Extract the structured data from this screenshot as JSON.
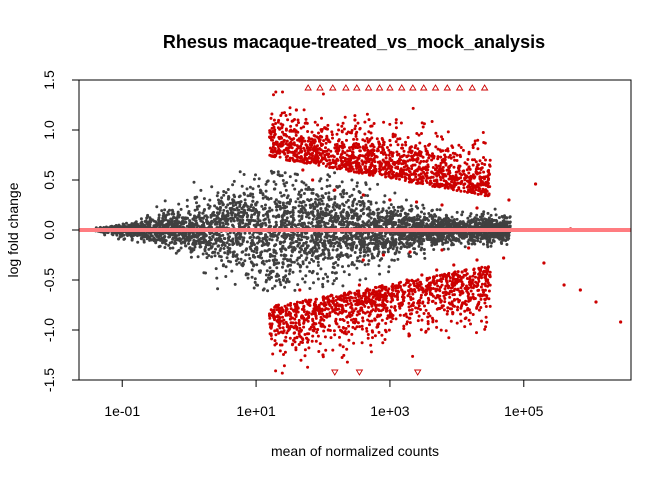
{
  "chart_data": {
    "type": "scatter",
    "title": "Rhesus macaque-treated_vs_mock_analysis",
    "xlabel": "mean of normalized counts",
    "ylabel": "log fold change",
    "x_scale": "log10",
    "xlim": [
      0.0226,
      4000000
    ],
    "ylim": [
      -1.5,
      1.5
    ],
    "x_ticks": [
      {
        "value": 0.1,
        "label": "1e-01"
      },
      {
        "value": 10,
        "label": "1e+01"
      },
      {
        "value": 1000,
        "label": "1e+03"
      },
      {
        "value": 100000,
        "label": "1e+05"
      }
    ],
    "y_ticks": [
      {
        "value": -1.5,
        "label": "-1.5"
      },
      {
        "value": -1.0,
        "label": "-1.0"
      },
      {
        "value": -0.5,
        "label": "-0.5"
      },
      {
        "value": 0.0,
        "label": "0.0"
      },
      {
        "value": 0.5,
        "label": "0.5"
      },
      {
        "value": 1.0,
        "label": "1.0"
      },
      {
        "value": 1.5,
        "label": "1.5"
      }
    ],
    "reference_line": {
      "y": 0,
      "color": "#ff7c80"
    },
    "colors": {
      "not_significant": "#404040",
      "significant": "#cc0000"
    },
    "grid": false,
    "series": [
      {
        "key": "sig",
        "points": [
          [
            50,
            0.6
          ],
          [
            80,
            0.75
          ],
          [
            120,
            0.9
          ],
          [
            200,
            0.65
          ],
          [
            300,
            1.1
          ],
          [
            500,
            0.55
          ],
          [
            800,
            0.8
          ],
          [
            1200,
            0.95
          ],
          [
            2000,
            0.7
          ],
          [
            3000,
            0.6
          ],
          [
            5000,
            0.5
          ],
          [
            8000,
            0.45
          ],
          [
            15000,
            0.4
          ],
          [
            30000,
            0.35
          ],
          [
            60000,
            0.3
          ],
          [
            150000,
            0.46
          ],
          [
            500000,
            0.01
          ],
          [
            100000,
            0.0
          ],
          [
            30,
            0.85
          ],
          [
            25,
            1.05
          ],
          [
            40,
            1.2
          ],
          [
            70,
            0.5
          ],
          [
            150,
            0.4
          ],
          [
            400,
            0.35
          ],
          [
            1000,
            0.3
          ],
          [
            2500,
            0.28
          ],
          [
            6000,
            0.25
          ],
          [
            20000,
            0.22
          ],
          [
            45,
            -0.6
          ],
          [
            80,
            -0.8
          ],
          [
            120,
            -1.0
          ],
          [
            200,
            -0.7
          ],
          [
            350,
            -0.55
          ],
          [
            600,
            -0.9
          ],
          [
            1000,
            -0.65
          ],
          [
            1800,
            -0.5
          ],
          [
            3000,
            -0.45
          ],
          [
            5000,
            -0.4
          ],
          [
            9000,
            -0.35
          ],
          [
            20000,
            -0.3
          ],
          [
            50000,
            -0.28
          ],
          [
            200000,
            -0.33
          ],
          [
            400000,
            -0.55
          ],
          [
            700000,
            -0.6
          ],
          [
            1200000,
            -0.72
          ],
          [
            2800000,
            -0.92
          ],
          [
            30,
            -0.75
          ],
          [
            60,
            -1.1
          ],
          [
            100,
            -1.25
          ],
          [
            180,
            -1.15
          ],
          [
            250,
            -0.85
          ],
          [
            700,
            -0.75
          ],
          [
            1500,
            -0.6
          ],
          [
            4000,
            -0.55
          ],
          [
            12000,
            -0.42
          ],
          [
            400,
            -0.3
          ],
          [
            800,
            -0.25
          ],
          [
            2000,
            -0.22
          ],
          [
            6000,
            -0.2
          ],
          [
            15000,
            -0.18
          ]
        ]
      },
      {
        "key": "cap",
        "points": [
          [
            60,
            1.42
          ],
          [
            90,
            1.42
          ],
          [
            140,
            1.42
          ],
          [
            220,
            1.42
          ],
          [
            320,
            1.42
          ],
          [
            480,
            1.42
          ],
          [
            700,
            1.42
          ],
          [
            1000,
            1.42
          ],
          [
            1500,
            1.42
          ],
          [
            2200,
            1.42
          ],
          [
            3200,
            1.42
          ],
          [
            4800,
            1.42
          ],
          [
            7200,
            1.42
          ],
          [
            11000,
            1.42
          ],
          [
            17000,
            1.42
          ],
          [
            26000,
            1.42
          ],
          [
            150,
            -1.42
          ],
          [
            350,
            -1.42
          ],
          [
            2600,
            -1.42
          ]
        ]
      }
    ]
  }
}
